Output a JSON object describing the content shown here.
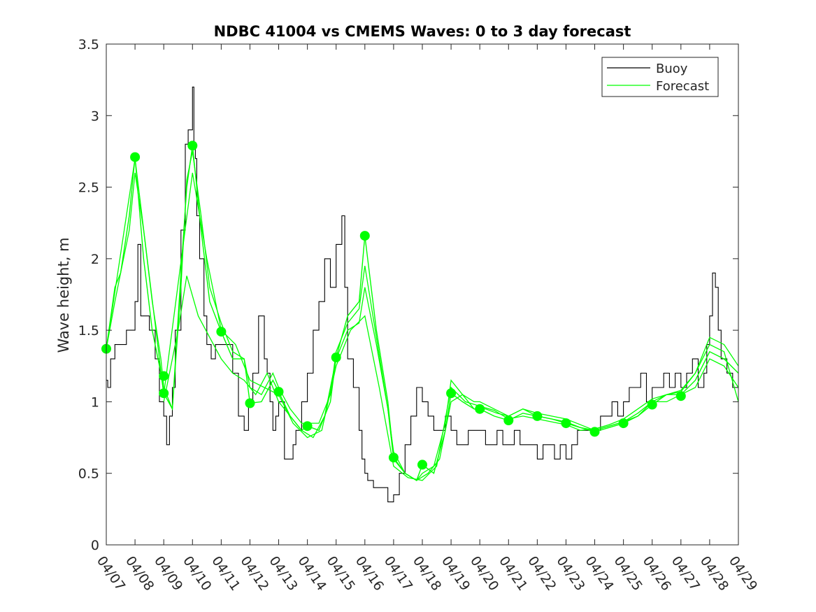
{
  "chart_data": {
    "type": "line",
    "title": "NDBC 41004 vs CMEMS Waves: 0 to 3 day forecast",
    "xlabel": "",
    "ylabel": "Wave height, m",
    "x_ticks": [
      "04/07",
      "04/08",
      "04/09",
      "04/10",
      "04/11",
      "04/12",
      "04/13",
      "04/14",
      "04/15",
      "04/16",
      "04/17",
      "04/18",
      "04/19",
      "04/20",
      "04/21",
      "04/22",
      "04/23",
      "04/24",
      "04/25",
      "04/26",
      "04/27",
      "04/28",
      "04/29"
    ],
    "xlim": [
      0,
      22
    ],
    "x_units": "days since 04/07",
    "ylim": [
      0,
      3.5
    ],
    "y_ticks": [
      "0",
      "0.5",
      "1",
      "1.5",
      "2",
      "2.5",
      "3",
      "3.5"
    ],
    "grid": false,
    "legend": {
      "placement": "top-right",
      "entries": [
        "Buoy",
        "Forecast"
      ]
    },
    "colors": {
      "buoy": "#000000",
      "forecast": "#00ff00"
    },
    "series": [
      {
        "name": "Buoy",
        "x": [
          0,
          0.05,
          0.15,
          0.3,
          0.5,
          0.7,
          0.85,
          1.0,
          1.1,
          1.2,
          1.3,
          1.5,
          1.7,
          1.85,
          2.0,
          2.1,
          2.2,
          2.3,
          2.4,
          2.6,
          2.75,
          2.85,
          3.0,
          3.05,
          3.1,
          3.15,
          3.25,
          3.4,
          3.5,
          3.65,
          3.8,
          4.0,
          4.2,
          4.4,
          4.6,
          4.8,
          4.95,
          5.1,
          5.3,
          5.5,
          5.6,
          5.7,
          5.8,
          5.9,
          6.0,
          6.2,
          6.3,
          6.5,
          6.6,
          6.8,
          7.0,
          7.2,
          7.4,
          7.6,
          7.8,
          8.0,
          8.2,
          8.3,
          8.4,
          8.6,
          8.8,
          8.9,
          9.0,
          9.1,
          9.3,
          9.5,
          9.6,
          9.8,
          10.0,
          10.2,
          10.4,
          10.6,
          10.8,
          11.0,
          11.2,
          11.4,
          11.6,
          11.8,
          12.0,
          12.2,
          12.4,
          12.6,
          12.8,
          13.0,
          13.2,
          13.4,
          13.6,
          13.8,
          14.0,
          14.2,
          14.4,
          14.6,
          14.8,
          15.0,
          15.2,
          15.4,
          15.6,
          15.8,
          16.0,
          16.2,
          16.4,
          16.6,
          16.8,
          17.0,
          17.2,
          17.4,
          17.6,
          17.8,
          18.0,
          18.2,
          18.4,
          18.6,
          18.8,
          19.0,
          19.2,
          19.4,
          19.6,
          19.8,
          20.0,
          20.2,
          20.4,
          20.6,
          20.8,
          20.9,
          21.0,
          21.1,
          21.2,
          21.3,
          21.4,
          21.6,
          21.8,
          22.0
        ],
        "y": [
          1.15,
          1.1,
          1.3,
          1.4,
          1.4,
          1.5,
          1.5,
          1.7,
          2.1,
          1.6,
          1.6,
          1.5,
          1.3,
          1.0,
          0.9,
          0.7,
          0.9,
          1.1,
          1.5,
          2.2,
          2.8,
          2.9,
          3.2,
          2.8,
          2.7,
          2.3,
          2.0,
          1.6,
          1.4,
          1.3,
          1.4,
          1.4,
          1.4,
          1.2,
          0.9,
          0.8,
          1.0,
          1.2,
          1.6,
          1.3,
          1.2,
          1.0,
          0.8,
          0.9,
          1.0,
          0.6,
          0.6,
          0.7,
          0.8,
          1.0,
          1.2,
          1.5,
          1.7,
          2.0,
          1.8,
          2.1,
          2.3,
          1.8,
          1.3,
          1.1,
          0.8,
          0.6,
          0.5,
          0.45,
          0.4,
          0.4,
          0.4,
          0.3,
          0.35,
          0.5,
          0.7,
          0.9,
          1.1,
          1.0,
          0.9,
          0.8,
          0.8,
          0.9,
          0.8,
          0.7,
          0.7,
          0.8,
          0.8,
          0.8,
          0.7,
          0.7,
          0.8,
          0.7,
          0.7,
          0.8,
          0.7,
          0.7,
          0.7,
          0.6,
          0.7,
          0.7,
          0.6,
          0.7,
          0.6,
          0.7,
          0.8,
          0.8,
          0.8,
          0.8,
          0.9,
          0.9,
          1.0,
          0.9,
          1.0,
          1.1,
          1.1,
          1.2,
          1.0,
          1.1,
          1.1,
          1.2,
          1.1,
          1.2,
          1.1,
          1.2,
          1.3,
          1.1,
          1.2,
          1.4,
          1.6,
          1.9,
          1.8,
          1.5,
          1.3,
          1.2,
          1.1,
          1.1
        ]
      },
      {
        "name": "Forecast",
        "x": [
          0,
          0.3,
          0.5,
          0.8,
          1.0,
          1.3,
          1.6,
          1.9,
          2.0,
          2.3,
          2.6,
          2.8,
          3.0,
          3.3,
          3.6,
          4.0,
          4.4,
          4.8,
          5.0,
          5.4,
          5.8,
          6.0,
          6.4,
          6.8,
          7.0,
          7.4,
          7.8,
          8.0,
          8.4,
          8.8,
          9.0,
          9.4,
          9.8,
          10.0,
          10.4,
          10.8,
          11.0,
          11.4,
          11.8,
          12.0,
          12.4,
          12.8,
          13.0,
          13.5,
          14.0,
          14.5,
          15.0,
          15.5,
          16.0,
          16.5,
          17.0,
          17.5,
          18.0,
          18.5,
          19.0,
          19.5,
          20.0,
          20.5,
          21.0,
          21.5,
          22.0
        ],
        "y": [
          1.37,
          1.8,
          1.9,
          2.3,
          2.71,
          2.0,
          1.5,
          1.2,
          1.06,
          0.95,
          1.9,
          2.5,
          2.79,
          2.2,
          1.7,
          1.49,
          1.3,
          1.3,
          0.99,
          1.0,
          1.15,
          1.07,
          0.9,
          0.8,
          0.83,
          0.8,
          1.0,
          1.31,
          1.6,
          1.7,
          2.16,
          1.5,
          1.0,
          0.61,
          0.5,
          0.45,
          0.56,
          0.5,
          0.8,
          1.06,
          1.0,
          0.95,
          0.95,
          0.9,
          0.87,
          0.92,
          0.9,
          0.88,
          0.85,
          0.82,
          0.79,
          0.82,
          0.85,
          0.9,
          0.98,
          1.05,
          1.05,
          1.15,
          1.35,
          1.3,
          1.2
        ]
      }
    ],
    "forecast_variants": [
      {
        "x": [
          0,
          0.3,
          0.5,
          0.8,
          1.0,
          1.3,
          1.6,
          1.9,
          2.0,
          2.3,
          2.6,
          2.8,
          3.0,
          3.3,
          3.6,
          4.0,
          4.4,
          4.8,
          5.0,
          5.4,
          5.8,
          6.0,
          6.4,
          6.8,
          7.0,
          7.4,
          7.8,
          8.0,
          8.4,
          8.8,
          9.0,
          9.4,
          9.8,
          10.0,
          10.4,
          10.8,
          11.0,
          11.4,
          11.8,
          12.0,
          12.4,
          12.8,
          13.0,
          13.5,
          14.0,
          14.5,
          15.0,
          15.5,
          16.0,
          16.5,
          17.0,
          17.5,
          18.0,
          18.5,
          19.0,
          19.5,
          20.0,
          20.5,
          21.0,
          21.5,
          22.0
        ],
        "y": [
          1.37,
          1.7,
          1.9,
          2.2,
          2.6,
          2.2,
          1.7,
          1.3,
          1.1,
          0.95,
          1.8,
          2.55,
          2.75,
          2.3,
          1.8,
          1.55,
          1.35,
          1.3,
          1.1,
          1.05,
          1.2,
          1.1,
          0.95,
          0.85,
          0.85,
          0.85,
          1.05,
          1.35,
          1.55,
          1.65,
          1.95,
          1.45,
          0.95,
          0.6,
          0.5,
          0.45,
          0.5,
          0.55,
          0.85,
          1.15,
          1.05,
          1.0,
          1.0,
          0.95,
          0.9,
          0.95,
          0.92,
          0.9,
          0.88,
          0.84,
          0.8,
          0.83,
          0.86,
          0.9,
          1.0,
          1.05,
          1.08,
          1.2,
          1.45,
          1.4,
          1.25
        ]
      },
      {
        "x": [
          2.0,
          2.5,
          2.8,
          3.2,
          3.6,
          4.0,
          4.4,
          4.8,
          5.2,
          5.6,
          6.0,
          6.4,
          6.8,
          7.2,
          7.6,
          8.0,
          8.4,
          8.8,
          9.0,
          9.4,
          9.8,
          10.0,
          10.4,
          10.8,
          11.2,
          11.6,
          12.0,
          12.4,
          12.8,
          13.2,
          13.6,
          14.0,
          14.5,
          15.0,
          15.5,
          16.0,
          16.5,
          17.0,
          17.5,
          18.0,
          18.5,
          19.0,
          19.5,
          20.0,
          20.5,
          21.0,
          21.5,
          22.0
        ],
        "y": [
          1.0,
          1.5,
          1.88,
          1.6,
          1.45,
          1.3,
          1.2,
          1.15,
          1.05,
          1.2,
          1.0,
          0.9,
          0.8,
          0.75,
          0.9,
          1.3,
          1.5,
          1.55,
          1.8,
          1.4,
          0.95,
          0.65,
          0.5,
          0.45,
          0.5,
          0.6,
          1.0,
          1.05,
          0.95,
          0.95,
          0.92,
          0.9,
          0.95,
          0.9,
          0.88,
          0.86,
          0.82,
          0.8,
          0.83,
          0.86,
          0.92,
          1.0,
          1.0,
          1.05,
          1.1,
          1.3,
          1.25,
          1.1
        ]
      },
      {
        "x": [
          0,
          1.0,
          2.0,
          3.0,
          3.5,
          4.0,
          4.5,
          5.0,
          5.5,
          6.0,
          6.5,
          7.0,
          7.5,
          8.0,
          8.5,
          9.0,
          9.5,
          10.0,
          10.5,
          11.0,
          11.5,
          12.0,
          12.5,
          13.0,
          13.5,
          14.0,
          14.5,
          15.0,
          15.5,
          16.0,
          16.5,
          17.0,
          17.5,
          18.0,
          18.5,
          19.0,
          19.5,
          20.0,
          20.5,
          21.0,
          21.5,
          22.0
        ],
        "y": [
          1.37,
          2.7,
          1.05,
          2.6,
          2.0,
          1.5,
          1.4,
          1.15,
          1.1,
          1.05,
          0.85,
          0.75,
          0.8,
          1.25,
          1.5,
          1.6,
          1.1,
          0.55,
          0.47,
          0.45,
          0.55,
          1.1,
          1.0,
          0.97,
          0.94,
          0.88,
          0.9,
          0.88,
          0.86,
          0.84,
          0.8,
          0.81,
          0.84,
          0.88,
          0.95,
          1.02,
          1.05,
          1.07,
          1.2,
          1.4,
          1.35,
          1.0
        ]
      }
    ],
    "markers": {
      "x": [
        0,
        1,
        2,
        2,
        3,
        4,
        5,
        6,
        7,
        8,
        9,
        10,
        11,
        12,
        13,
        14,
        15,
        16,
        17,
        18,
        19,
        20
      ],
      "y": [
        1.37,
        2.71,
        1.18,
        1.06,
        2.79,
        1.49,
        0.99,
        1.07,
        0.83,
        1.31,
        2.16,
        0.61,
        0.56,
        1.06,
        0.95,
        0.87,
        0.9,
        0.85,
        0.79,
        0.85,
        0.98,
        1.04
      ]
    }
  }
}
